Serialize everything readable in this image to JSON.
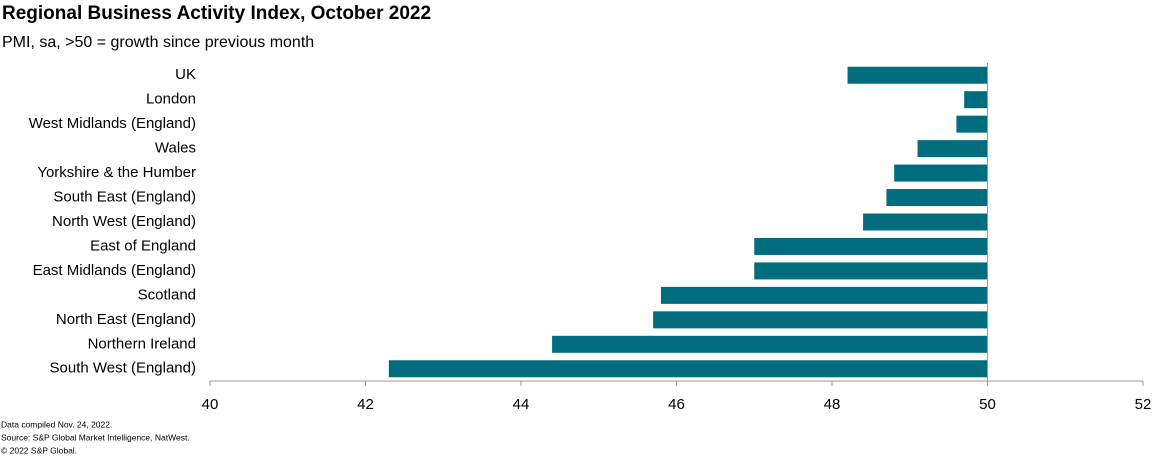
{
  "chart_data": {
    "type": "bar",
    "orientation": "horizontal",
    "title": "Regional Business Activity Index, October 2022",
    "subtitle": "PMI, sa, >50 = growth since previous month",
    "categories": [
      "UK",
      "London",
      "West Midlands (England)",
      "Wales",
      "Yorkshire & the Humber",
      "South East (England)",
      "North West (England)",
      "East of England",
      "East Midlands (England)",
      "Scotland",
      "North East (England)",
      "Northern Ireland",
      "South West (England)"
    ],
    "values": [
      48.2,
      49.7,
      49.6,
      49.1,
      48.8,
      48.7,
      48.4,
      47.0,
      47.0,
      45.8,
      45.7,
      44.4,
      42.3
    ],
    "base": 50,
    "color": "#006d7e",
    "xlim": [
      40,
      52
    ],
    "xticks": [
      40,
      42,
      44,
      46,
      48,
      50,
      52
    ],
    "notes": [
      "Data compiled Nov. 24, 2022.",
      "Source: S&P Global Market Intelligence, NatWest.",
      "© 2022 S&P Global."
    ]
  }
}
